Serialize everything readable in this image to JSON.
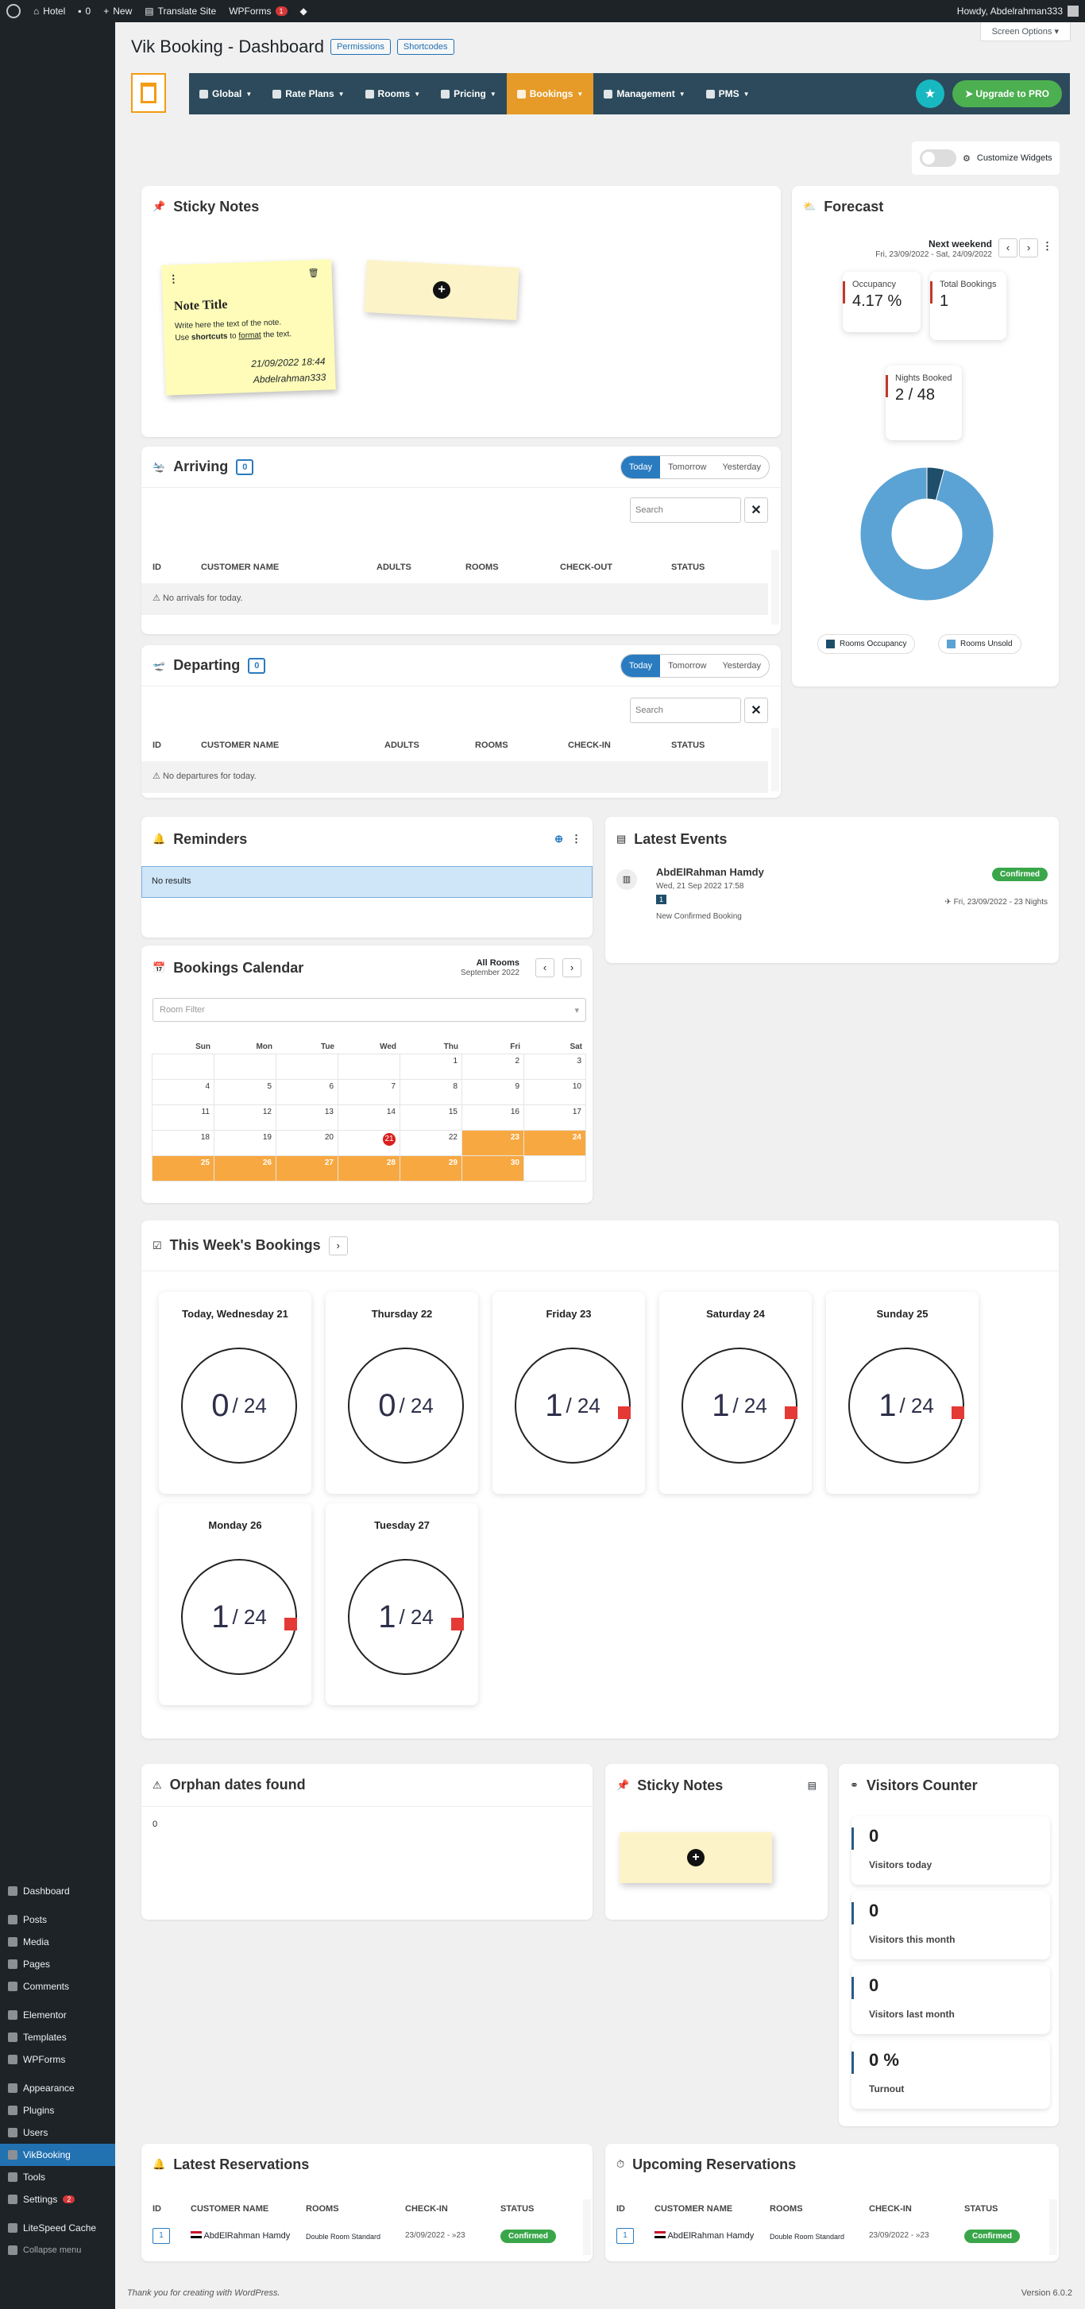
{
  "adminbar": {
    "site": "Hotel",
    "comments": "0",
    "new": "New",
    "translate": "Translate Site",
    "wpforms": "WPForms",
    "wpforms_count": "1",
    "howdy": "Howdy, Abdelrahman333"
  },
  "sidebar": {
    "items": [
      {
        "label": "Dashboard",
        "icon": "dashboard-icon"
      },
      {
        "label": "Posts",
        "icon": "pin-icon"
      },
      {
        "label": "Media",
        "icon": "media-icon"
      },
      {
        "label": "Pages",
        "icon": "page-icon"
      },
      {
        "label": "Comments",
        "icon": "comment-icon"
      },
      {
        "label": "Elementor",
        "icon": "elementor-icon"
      },
      {
        "label": "Templates",
        "icon": "folder-icon"
      },
      {
        "label": "WPForms",
        "icon": "form-icon"
      },
      {
        "label": "Appearance",
        "icon": "brush-icon"
      },
      {
        "label": "Plugins",
        "icon": "plugin-icon"
      },
      {
        "label": "Users",
        "icon": "user-icon"
      },
      {
        "label": "VikBooking",
        "icon": "vikbooking-icon"
      },
      {
        "label": "Tools",
        "icon": "wrench-icon"
      },
      {
        "label": "Settings",
        "icon": "settings-icon",
        "count": "2"
      },
      {
        "label": "LiteSpeed Cache",
        "icon": "litespeed-icon"
      },
      {
        "label": "Collapse menu",
        "icon": "collapse-icon"
      }
    ]
  },
  "screen_options": "Screen Options",
  "page": {
    "title": "Vik Booking - Dashboard",
    "permissions": "Permissions",
    "shortcodes": "Shortcodes"
  },
  "nav": {
    "items": [
      "Global",
      "Rate Plans",
      "Rooms",
      "Pricing",
      "Bookings",
      "Management",
      "PMS"
    ],
    "active": "Bookings",
    "upgrade": "Upgrade to PRO",
    "accent": "#e69b28",
    "bar": "#2c4a5b"
  },
  "customize": "Customize Widgets",
  "sticky": {
    "title": "Sticky Notes",
    "note_title": "Note Title",
    "note_body1": "Write here the text of the note.",
    "note_body2a": "Use ",
    "note_bold": "shortcuts",
    "note_body2b": " to ",
    "note_link": "format",
    "note_body2c": " the text.",
    "note_date": "21/09/2022 18:44",
    "note_author": "Abdelrahman333"
  },
  "arriving": {
    "title": "Arriving",
    "count": "0",
    "tabs": [
      "Today",
      "Tomorrow",
      "Yesterday"
    ],
    "search": "Search",
    "cols": [
      "ID",
      "CUSTOMER NAME",
      "ADULTS",
      "ROOMS",
      "CHECK-OUT",
      "STATUS"
    ],
    "empty": "No arrivals for today."
  },
  "departing": {
    "title": "Departing",
    "count": "0",
    "tabs": [
      "Today",
      "Tomorrow",
      "Yesterday"
    ],
    "search": "Search",
    "cols": [
      "ID",
      "CUSTOMER NAME",
      "ADULTS",
      "ROOMS",
      "CHECK-IN",
      "STATUS"
    ],
    "empty": "No departures for today."
  },
  "forecast": {
    "title": "Forecast",
    "period": "Next weekend",
    "dates": "Fri, 23/09/2022 - Sat, 24/09/2022",
    "occupancy_label": "Occupancy",
    "occupancy": "4.17 %",
    "total_label": "Total Bookings",
    "total": "1",
    "nights_label": "Nights Booked",
    "nights": "2 / 48",
    "legend": [
      "Rooms Occupancy",
      "Rooms Unsold"
    ],
    "colors": [
      "#1f4e6b",
      "#5ba3d4"
    ],
    "occupancy_fraction": 0.0417
  },
  "reminders": {
    "title": "Reminders",
    "empty": "No results"
  },
  "events": {
    "title": "Latest Events",
    "name": "AbdElRahman Hamdy",
    "date": "Wed, 21 Sep 2022 17:58",
    "id": "1",
    "status": "Confirmed",
    "desc": "New Confirmed Booking",
    "stay": "Fri, 23/09/2022 - 23 Nights"
  },
  "calendar": {
    "title": "Bookings Calendar",
    "rooms": "All Rooms",
    "month": "September 2022",
    "filter": "Room Filter",
    "days": [
      "Sun",
      "Mon",
      "Tue",
      "Wed",
      "Thu",
      "Fri",
      "Sat"
    ],
    "today": 21,
    "booked_from": 23,
    "lead_blanks": 4,
    "last_day": 30
  },
  "week": {
    "title": "This Week's Bookings",
    "days": [
      {
        "label": "Today, Wednesday 21",
        "booked": "0",
        "total": "/ 24",
        "flag": false
      },
      {
        "label": "Thursday 22",
        "booked": "0",
        "total": "/ 24",
        "flag": false
      },
      {
        "label": "Friday 23",
        "booked": "1",
        "total": "/ 24",
        "flag": true
      },
      {
        "label": "Saturday 24",
        "booked": "1",
        "total": "/ 24",
        "flag": true
      },
      {
        "label": "Sunday 25",
        "booked": "1",
        "total": "/ 24",
        "flag": true
      },
      {
        "label": "Monday 26",
        "booked": "1",
        "total": "/ 24",
        "flag": true
      },
      {
        "label": "Tuesday 27",
        "booked": "1",
        "total": "/ 24",
        "flag": true
      }
    ]
  },
  "orphan": {
    "title": "Orphan dates found",
    "value": "0"
  },
  "sticky2": {
    "title": "Sticky Notes"
  },
  "visitors": {
    "title": "Visitors Counter",
    "items": [
      {
        "n": "0",
        "l": "Visitors today"
      },
      {
        "n": "0",
        "l": "Visitors this month"
      },
      {
        "n": "0",
        "l": "Visitors last month"
      },
      {
        "n": "0 %",
        "l": "Turnout"
      }
    ]
  },
  "latest_res": {
    "title": "Latest Reservations",
    "cols": [
      "ID",
      "CUSTOMER NAME",
      "ROOMS",
      "CHECK-IN",
      "STATUS"
    ],
    "row": {
      "id": "1",
      "name": "AbdElRahman Hamdy",
      "room": "Double Room Standard",
      "checkin": "23/09/2022 - »23",
      "status": "Confirmed"
    }
  },
  "upcoming_res": {
    "title": "Upcoming Reservations",
    "cols": [
      "ID",
      "CUSTOMER NAME",
      "ROOMS",
      "CHECK-IN",
      "STATUS"
    ],
    "row": {
      "id": "1",
      "name": "AbdElRahman Hamdy",
      "room": "Double Room Standard",
      "checkin": "23/09/2022 - »23",
      "status": "Confirmed"
    }
  },
  "footer": {
    "thanks": "Thank you for creating with WordPress.",
    "version": "Version 6.0.2"
  }
}
